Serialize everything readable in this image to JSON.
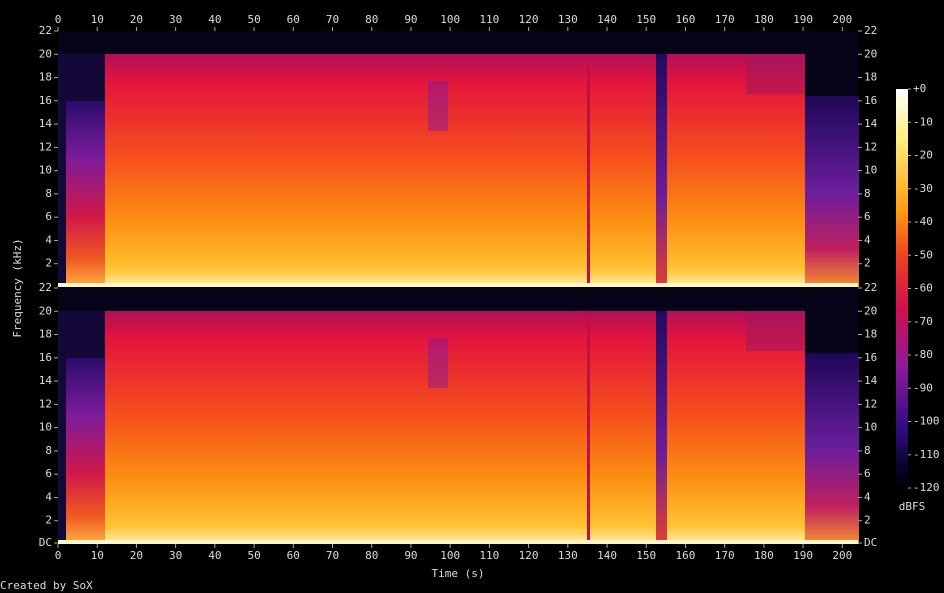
{
  "chart_data": {
    "type": "spectrogram",
    "x_label": "Time (s)",
    "y_label": "Frequency (kHz)",
    "xlim": [
      0,
      204
    ],
    "xticks": [
      0,
      10,
      20,
      30,
      40,
      50,
      60,
      70,
      80,
      90,
      100,
      110,
      120,
      130,
      140,
      150,
      160,
      170,
      180,
      190,
      200
    ],
    "panels": [
      {
        "ylim": [
          0,
          22
        ],
        "yticks": [
          2,
          4,
          6,
          8,
          10,
          12,
          14,
          16,
          18,
          20,
          22
        ]
      },
      {
        "ylim": [
          0,
          22
        ],
        "yticks": [
          {
            "value": 0,
            "label": "DC"
          },
          2,
          4,
          6,
          8,
          10,
          12,
          14,
          16,
          18,
          20,
          22
        ]
      }
    ],
    "colorbar": {
      "label": "dBFS",
      "zlim": [
        -120,
        0
      ],
      "zticks": [
        {
          "value": 0,
          "label": "+0"
        },
        -10,
        -20,
        -30,
        -40,
        -50,
        -60,
        -70,
        -80,
        -90,
        -100,
        -110,
        -120
      ]
    },
    "footer": "Created by SoX"
  }
}
